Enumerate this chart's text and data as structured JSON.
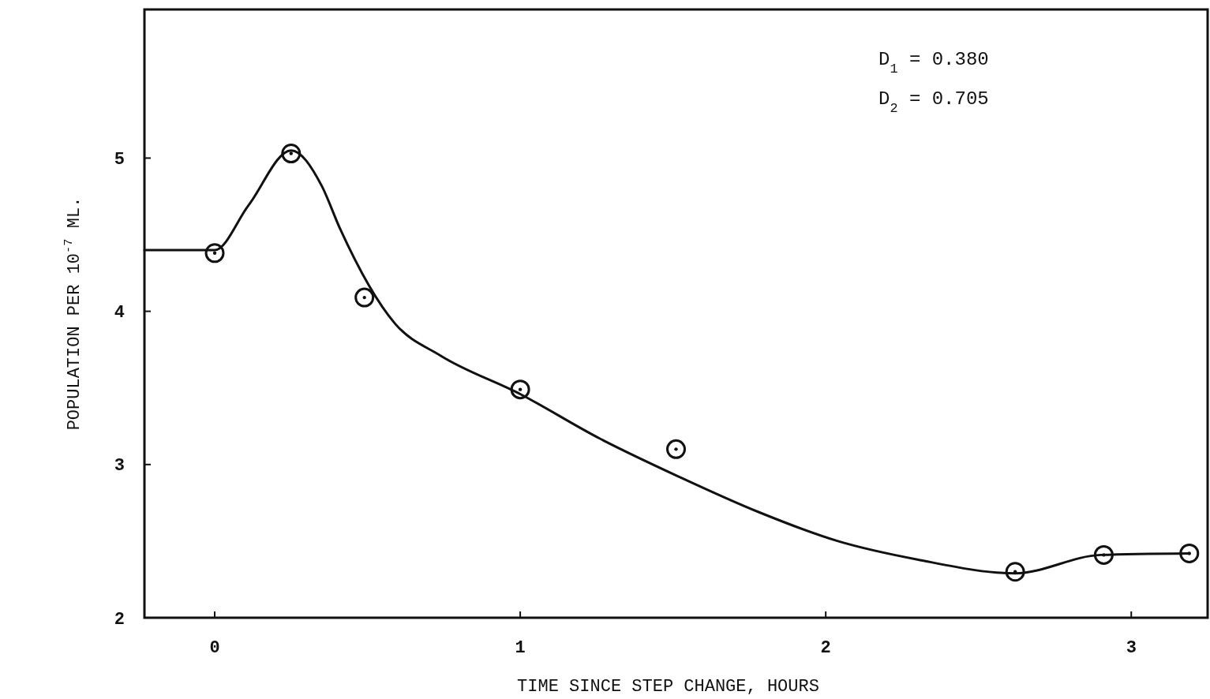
{
  "chart_data": {
    "type": "scatter",
    "xlabel": "TIME SINCE STEP CHANGE, HOURS",
    "ylabel": "POPULATION PER 10$^{-7}$ ML.",
    "annotations": [
      "D$_{1}$ = 0.380",
      "D$_{2}$ = 0.705"
    ],
    "xlim": [
      -0.23,
      3.25
    ],
    "ylim": [
      2,
      5.97
    ],
    "xticks": [
      0,
      1,
      2,
      3
    ],
    "yticks": [
      2,
      3,
      4,
      5
    ],
    "grid": false,
    "series": [
      {
        "color": "#111111",
        "marker": "circle",
        "x": [
          0,
          0.25,
          0.49,
          1.0,
          1.51,
          2.62,
          2.91,
          3.19
        ],
        "values": [
          4.38,
          5.03,
          4.09,
          3.49,
          3.1,
          2.3,
          2.41,
          2.42
        ]
      },
      {
        "type": "line",
        "color": "#111111",
        "marker": "none",
        "line_style": "solid",
        "x": [
          -0.23,
          0,
          0.11,
          0.25,
          0.35,
          0.41,
          0.59,
          0.74,
          1.0,
          1.26,
          1.52,
          1.78,
          2.04,
          2.3,
          2.62,
          2.9,
          3.19
        ],
        "values": [
          4.4,
          4.4,
          4.69,
          5.05,
          4.82,
          4.54,
          3.92,
          3.71,
          3.46,
          3.17,
          2.92,
          2.69,
          2.5,
          2.38,
          2.29,
          2.41,
          2.42
        ]
      }
    ]
  }
}
